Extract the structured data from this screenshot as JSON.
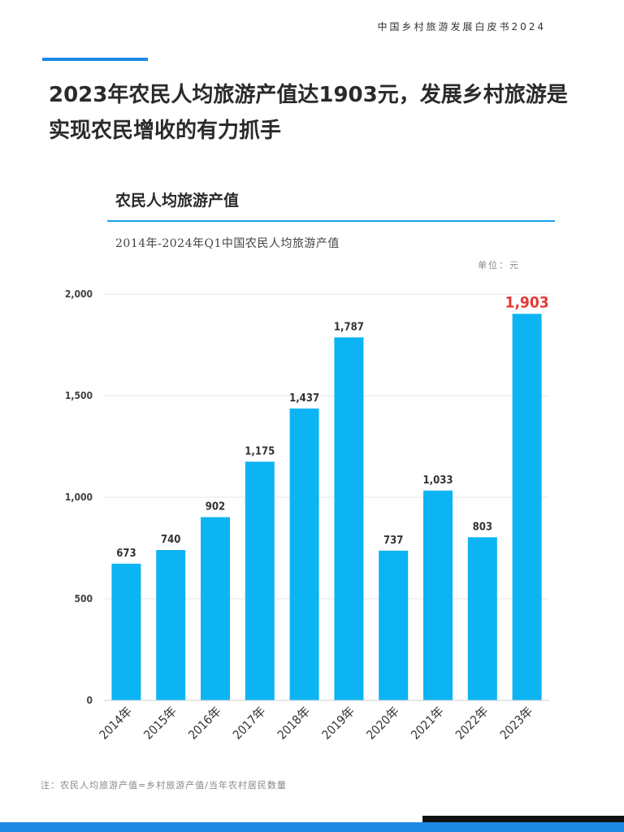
{
  "header": {
    "report_title": "中国乡村旅游发展白皮书2024"
  },
  "headline": "2023年农民人均旅游产值达1903元，发展乡村旅游是实现农民增收的有力抓手",
  "chart_section": {
    "title": "农民人均旅游产值",
    "subtitle": "2014年-2024年Q1中国农民人均旅游产值",
    "unit": "单位：元"
  },
  "footnote": "注：农民人均旅游产值=乡村旅游产值/当年农村居民数量",
  "colors": {
    "bar": "#0db4f3",
    "highlight_label": "#e53935",
    "accent": "#1e88e5"
  },
  "chart_data": {
    "type": "bar",
    "categories": [
      "2014年",
      "2015年",
      "2016年",
      "2017年",
      "2018年",
      "2019年",
      "2020年",
      "2021年",
      "2022年",
      "2023年"
    ],
    "values": [
      673,
      740,
      902,
      1175,
      1437,
      1787,
      737,
      1033,
      803,
      1903
    ],
    "value_labels": [
      "673",
      "740",
      "902",
      "1,175",
      "1,437",
      "1,787",
      "737",
      "1,033",
      "803",
      "1,903"
    ],
    "highlight_index": 9,
    "yticks": [
      "0",
      "500",
      "1,000",
      "1,500",
      "2,000"
    ],
    "ytick_values": [
      0,
      500,
      1000,
      1500,
      2000
    ],
    "ylim": [
      0,
      2000
    ],
    "grid": true,
    "title": "农民人均旅游产值"
  }
}
